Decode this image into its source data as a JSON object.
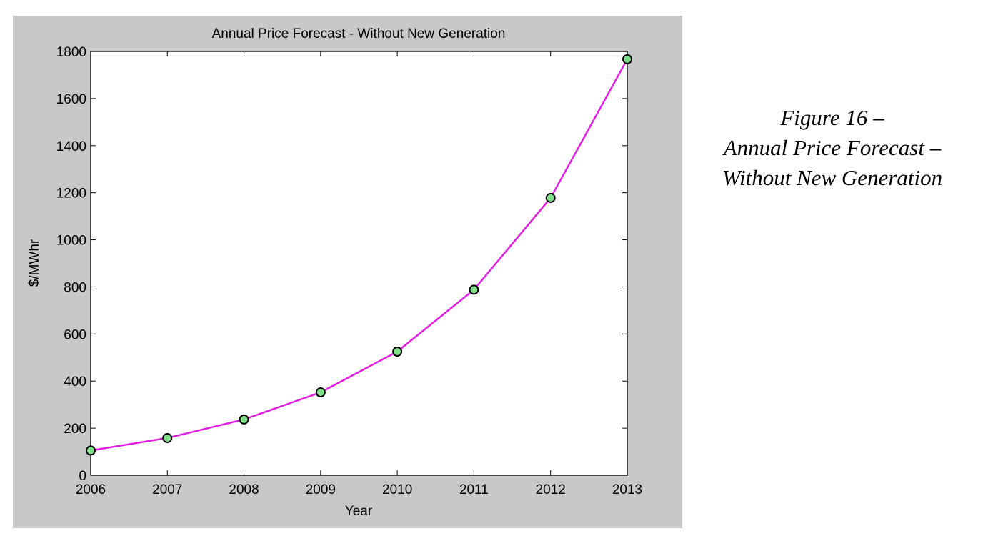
{
  "caption": {
    "line1": "Figure 16 –",
    "line2": "Annual Price Forecast –",
    "line3": "Without New Generation"
  },
  "colors": {
    "panel_background": "#c8c8c8",
    "plot_background": "#ffffff",
    "line": "#e020e0",
    "marker_fill": "#7fe08a",
    "marker_edge": "#000000"
  },
  "chart_data": {
    "type": "line",
    "title": "Annual Price Forecast - Without New Generation",
    "xlabel": "Year",
    "ylabel": "$/MWhr",
    "xlim": [
      2006,
      2013
    ],
    "ylim": [
      0,
      1800
    ],
    "x_ticks": [
      2006,
      2007,
      2008,
      2009,
      2010,
      2011,
      2012,
      2013
    ],
    "y_ticks": [
      0,
      200,
      400,
      600,
      800,
      1000,
      1200,
      1400,
      1600,
      1800
    ],
    "grid": false,
    "series": [
      {
        "x": [
          2006,
          2007,
          2008,
          2009,
          2010,
          2011,
          2012,
          2013
        ],
        "values": [
          105,
          158,
          237,
          352,
          525,
          788,
          1178,
          1767
        ]
      }
    ]
  }
}
